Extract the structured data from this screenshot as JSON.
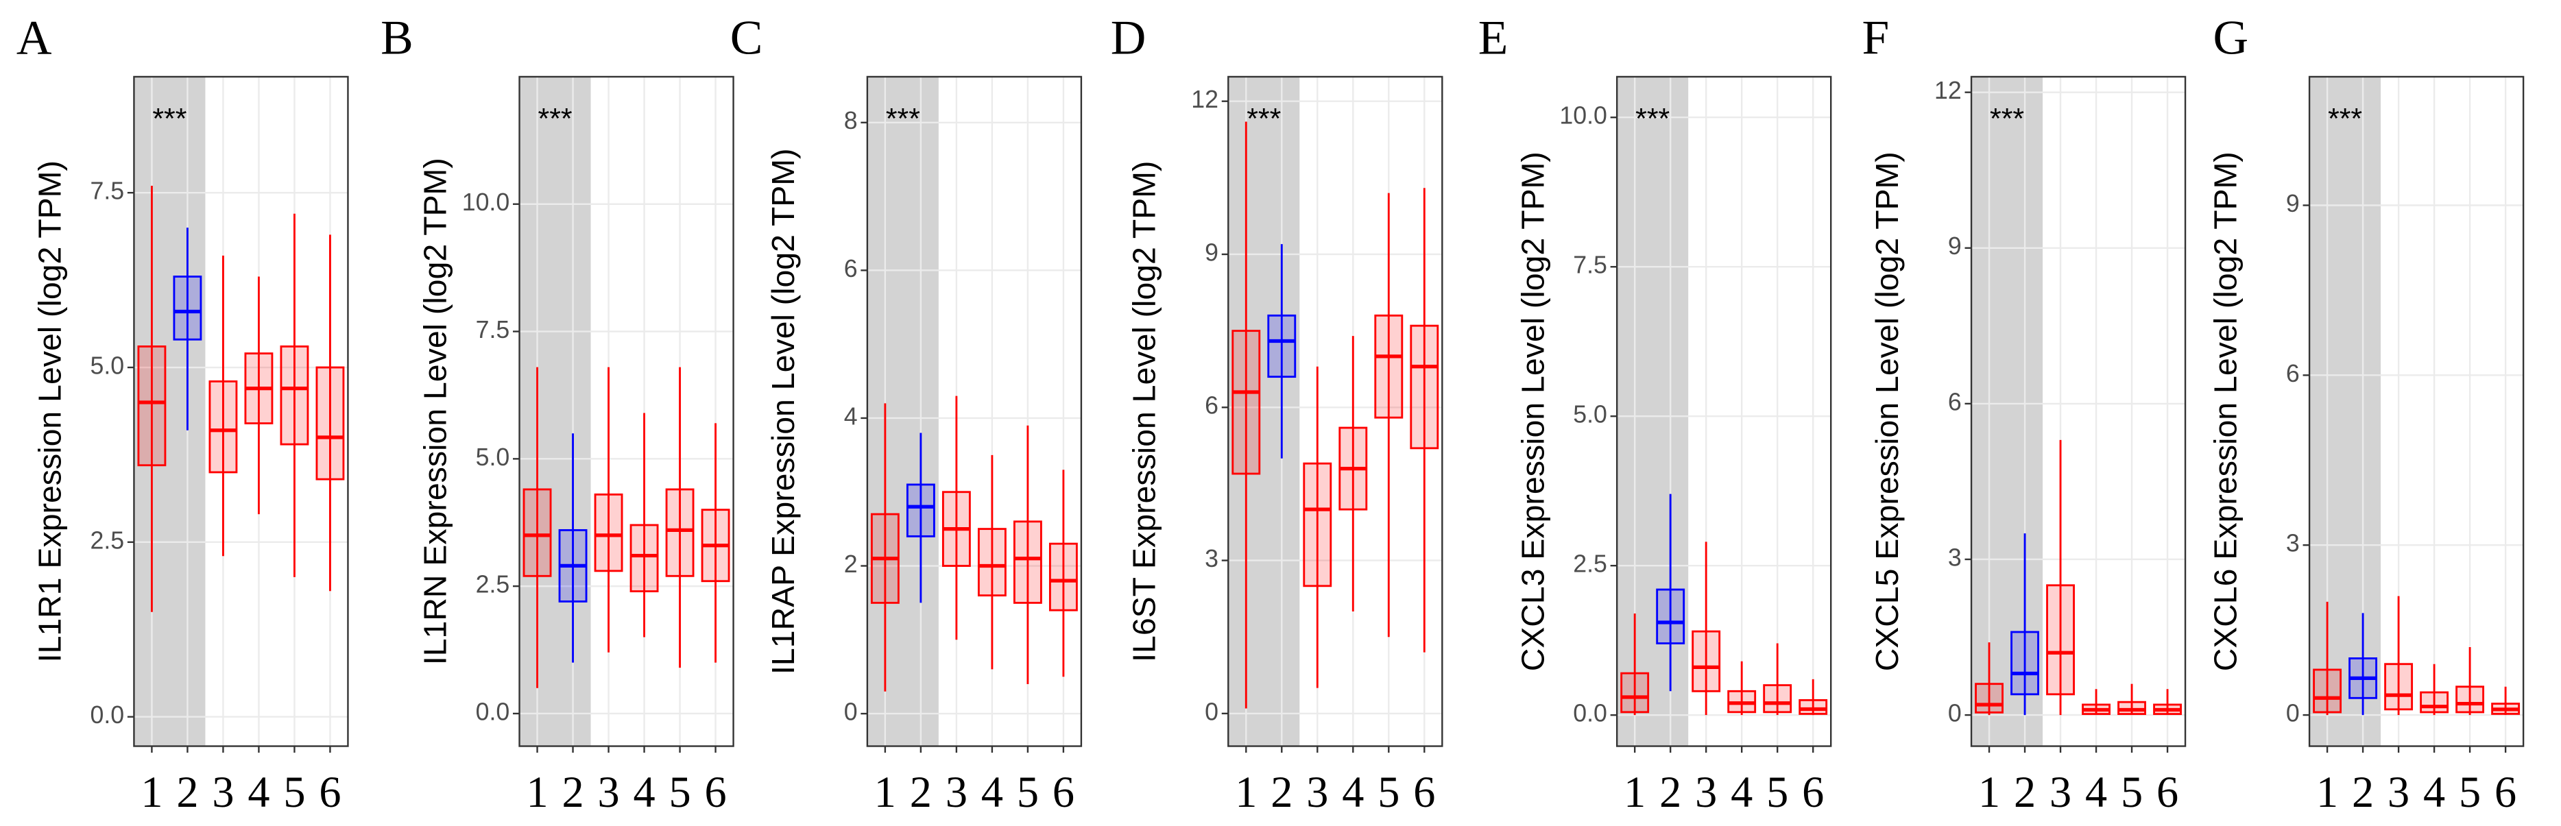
{
  "chart_data": [
    {
      "type": "box",
      "panel": "A",
      "ylabel": "IL1R1 Expression Level (log2 TPM)",
      "annotation": "***",
      "categories": [
        "1",
        "2",
        "3",
        "4",
        "5",
        "6"
      ],
      "shaded": [
        "1",
        "2"
      ],
      "ylim": [
        -0.42,
        9.16
      ],
      "yticks": [
        {
          "value": 0,
          "label": "0.0"
        },
        2.5,
        {
          "value": 5,
          "label": "5.0"
        },
        7.5
      ],
      "grid": true,
      "boxes": [
        {
          "color": "#ff0000",
          "min": 1.5,
          "q1": 3.6,
          "median": 4.5,
          "q3": 5.3,
          "max": 7.6
        },
        {
          "color": "#0000ff",
          "min": 4.1,
          "q1": 5.4,
          "median": 5.8,
          "q3": 6.3,
          "max": 7.0
        },
        {
          "color": "#ff0000",
          "min": 2.3,
          "q1": 3.5,
          "median": 4.1,
          "q3": 4.8,
          "max": 6.6
        },
        {
          "color": "#ff0000",
          "min": 2.9,
          "q1": 4.2,
          "median": 4.7,
          "q3": 5.2,
          "max": 6.3
        },
        {
          "color": "#ff0000",
          "min": 2.0,
          "q1": 3.9,
          "median": 4.7,
          "q3": 5.3,
          "max": 7.2
        },
        {
          "color": "#ff0000",
          "min": 1.8,
          "q1": 3.4,
          "median": 4.0,
          "q3": 5.0,
          "max": 6.9
        }
      ]
    },
    {
      "type": "box",
      "panel": "B",
      "ylabel": "IL1RN Expression Level (log2 TPM)",
      "annotation": "***",
      "categories": [
        "1",
        "2",
        "3",
        "4",
        "5",
        "6"
      ],
      "shaded": [
        "1",
        "2"
      ],
      "ylim": [
        -0.64,
        12.5
      ],
      "yticks": [
        {
          "value": 0,
          "label": "0.0"
        },
        2.5,
        {
          "value": 5,
          "label": "5.0"
        },
        7.5,
        {
          "value": 10,
          "label": "10.0"
        }
      ],
      "grid": true,
      "boxes": [
        {
          "color": "#ff0000",
          "min": 0.5,
          "q1": 2.7,
          "median": 3.5,
          "q3": 4.4,
          "max": 6.8
        },
        {
          "color": "#0000ff",
          "min": 1.0,
          "q1": 2.2,
          "median": 2.9,
          "q3": 3.6,
          "max": 5.5
        },
        {
          "color": "#ff0000",
          "min": 1.2,
          "q1": 2.8,
          "median": 3.5,
          "q3": 4.3,
          "max": 6.8
        },
        {
          "color": "#ff0000",
          "min": 1.5,
          "q1": 2.4,
          "median": 3.1,
          "q3": 3.7,
          "max": 5.9
        },
        {
          "color": "#ff0000",
          "min": 0.9,
          "q1": 2.7,
          "median": 3.6,
          "q3": 4.4,
          "max": 6.8
        },
        {
          "color": "#ff0000",
          "min": 1.0,
          "q1": 2.6,
          "median": 3.3,
          "q3": 4.0,
          "max": 5.7
        }
      ]
    },
    {
      "type": "box",
      "panel": "C",
      "ylabel": "IL1RAP Expression Level (log2 TPM)",
      "annotation": "***",
      "categories": [
        "1",
        "2",
        "3",
        "4",
        "5",
        "6"
      ],
      "shaded": [
        "1",
        "2"
      ],
      "ylim": [
        -0.44,
        8.62
      ],
      "yticks": [
        0,
        2,
        4,
        6,
        8
      ],
      "grid": true,
      "boxes": [
        {
          "color": "#ff0000",
          "min": 0.3,
          "q1": 1.5,
          "median": 2.1,
          "q3": 2.7,
          "max": 4.2
        },
        {
          "color": "#0000ff",
          "min": 1.5,
          "q1": 2.4,
          "median": 2.8,
          "q3": 3.1,
          "max": 3.8
        },
        {
          "color": "#ff0000",
          "min": 1.0,
          "q1": 2.0,
          "median": 2.5,
          "q3": 3.0,
          "max": 4.3
        },
        {
          "color": "#ff0000",
          "min": 0.6,
          "q1": 1.6,
          "median": 2.0,
          "q3": 2.5,
          "max": 3.5
        },
        {
          "color": "#ff0000",
          "min": 0.4,
          "q1": 1.5,
          "median": 2.1,
          "q3": 2.6,
          "max": 3.9
        },
        {
          "color": "#ff0000",
          "min": 0.5,
          "q1": 1.4,
          "median": 1.8,
          "q3": 2.3,
          "max": 3.3
        }
      ]
    },
    {
      "type": "box",
      "panel": "D",
      "ylabel": "IL6ST Expression Level (log2 TPM)",
      "annotation": "***",
      "categories": [
        "1",
        "2",
        "3",
        "4",
        "5",
        "6"
      ],
      "shaded": [
        "1",
        "2"
      ],
      "ylim": [
        -0.64,
        12.48
      ],
      "yticks": [
        0,
        3,
        6,
        9,
        12
      ],
      "grid": true,
      "boxes": [
        {
          "color": "#ff0000",
          "min": 0.1,
          "q1": 4.7,
          "median": 6.3,
          "q3": 7.5,
          "max": 11.6
        },
        {
          "color": "#0000ff",
          "min": 5.0,
          "q1": 6.6,
          "median": 7.3,
          "q3": 7.8,
          "max": 9.2
        },
        {
          "color": "#ff0000",
          "min": 0.5,
          "q1": 2.5,
          "median": 4.0,
          "q3": 4.9,
          "max": 6.8
        },
        {
          "color": "#ff0000",
          "min": 2.0,
          "q1": 4.0,
          "median": 4.8,
          "q3": 5.6,
          "max": 7.4
        },
        {
          "color": "#ff0000",
          "min": 1.5,
          "q1": 5.8,
          "median": 7.0,
          "q3": 7.8,
          "max": 10.2
        },
        {
          "color": "#ff0000",
          "min": 1.2,
          "q1": 5.2,
          "median": 6.8,
          "q3": 7.6,
          "max": 10.3
        }
      ]
    },
    {
      "type": "box",
      "panel": "E",
      "ylabel": "CXCL3 Expression Level (log2 TPM)",
      "annotation": "***",
      "categories": [
        "1",
        "2",
        "3",
        "4",
        "5",
        "6"
      ],
      "shaded": [
        "1",
        "2"
      ],
      "ylim": [
        -0.52,
        10.68
      ],
      "yticks": [
        {
          "value": 0,
          "label": "0.0"
        },
        2.5,
        {
          "value": 5,
          "label": "5.0"
        },
        7.5,
        {
          "value": 10,
          "label": "10.0"
        }
      ],
      "grid": true,
      "boxes": [
        {
          "color": "#ff0000",
          "min": 0,
          "q1": 0.05,
          "median": 0.3,
          "q3": 0.7,
          "max": 1.7
        },
        {
          "color": "#0000ff",
          "min": 0.4,
          "q1": 1.2,
          "median": 1.55,
          "q3": 2.1,
          "max": 3.7
        },
        {
          "color": "#ff0000",
          "min": 0,
          "q1": 0.4,
          "median": 0.8,
          "q3": 1.4,
          "max": 2.9
        },
        {
          "color": "#ff0000",
          "min": 0,
          "q1": 0.05,
          "median": 0.2,
          "q3": 0.4,
          "max": 0.9
        },
        {
          "color": "#ff0000",
          "min": 0,
          "q1": 0.05,
          "median": 0.2,
          "q3": 0.5,
          "max": 1.2
        },
        {
          "color": "#ff0000",
          "min": 0,
          "q1": 0.02,
          "median": 0.1,
          "q3": 0.25,
          "max": 0.6
        }
      ]
    },
    {
      "type": "box",
      "panel": "F",
      "ylabel": "CXCL5 Expression Level (log2 TPM)",
      "annotation": "***",
      "categories": [
        "1",
        "2",
        "3",
        "4",
        "5",
        "6"
      ],
      "shaded": [
        "1",
        "2"
      ],
      "ylim": [
        -0.6,
        12.3
      ],
      "yticks": [
        0,
        3,
        6,
        9,
        12
      ],
      "grid": true,
      "boxes": [
        {
          "color": "#ff0000",
          "min": 0,
          "q1": 0.05,
          "median": 0.2,
          "q3": 0.6,
          "max": 1.4
        },
        {
          "color": "#0000ff",
          "min": 0,
          "q1": 0.4,
          "median": 0.8,
          "q3": 1.6,
          "max": 3.5
        },
        {
          "color": "#ff0000",
          "min": 0,
          "q1": 0.4,
          "median": 1.2,
          "q3": 2.5,
          "max": 5.3
        },
        {
          "color": "#ff0000",
          "min": 0,
          "q1": 0.02,
          "median": 0.1,
          "q3": 0.2,
          "max": 0.5
        },
        {
          "color": "#ff0000",
          "min": 0,
          "q1": 0.02,
          "median": 0.1,
          "q3": 0.25,
          "max": 0.6
        },
        {
          "color": "#ff0000",
          "min": 0,
          "q1": 0.02,
          "median": 0.1,
          "q3": 0.2,
          "max": 0.5
        }
      ]
    },
    {
      "type": "box",
      "panel": "G",
      "ylabel": "CXCL6 Expression Level (log2 TPM)",
      "annotation": "***",
      "categories": [
        "1",
        "2",
        "3",
        "4",
        "5",
        "6"
      ],
      "shaded": [
        "1",
        "2"
      ],
      "ylim": [
        -0.55,
        11.27
      ],
      "yticks": [
        0,
        3,
        6,
        9
      ],
      "grid": true,
      "boxes": [
        {
          "color": "#ff0000",
          "min": 0,
          "q1": 0.05,
          "median": 0.3,
          "q3": 0.8,
          "max": 2.0
        },
        {
          "color": "#0000ff",
          "min": 0,
          "q1": 0.3,
          "median": 0.65,
          "q3": 1.0,
          "max": 1.8
        },
        {
          "color": "#ff0000",
          "min": 0,
          "q1": 0.1,
          "median": 0.35,
          "q3": 0.9,
          "max": 2.1
        },
        {
          "color": "#ff0000",
          "min": 0,
          "q1": 0.05,
          "median": 0.15,
          "q3": 0.4,
          "max": 0.9
        },
        {
          "color": "#ff0000",
          "min": 0,
          "q1": 0.05,
          "median": 0.2,
          "q3": 0.5,
          "max": 1.2
        },
        {
          "color": "#ff0000",
          "min": 0,
          "q1": 0.02,
          "median": 0.1,
          "q3": 0.2,
          "max": 0.5
        }
      ]
    }
  ]
}
